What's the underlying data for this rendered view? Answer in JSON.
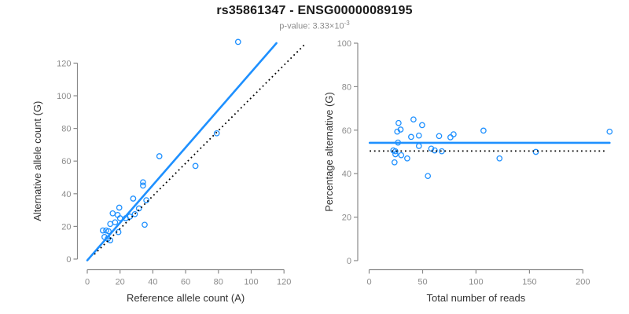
{
  "header": {
    "title": "rs35861347 - ENSG00000089195",
    "pvalue_prefix": "p-value: 3.33×10",
    "pvalue_exponent": "-3"
  },
  "colors": {
    "accent_blue": "#1E90FF",
    "dotted_black": "#000000",
    "axis_gray": "#8a8a8a",
    "tick_label_gray": "#8c8c8c",
    "axis_title_dark": "#333333"
  },
  "chart_data": [
    {
      "id": "allele-count-scatter",
      "type": "scatter",
      "xlabel": "Reference allele count (A)",
      "ylabel": "Alternative allele count (G)",
      "x_ticks": [
        0,
        20,
        40,
        60,
        80,
        100,
        120
      ],
      "y_ticks": [
        0,
        20,
        40,
        60,
        80,
        100,
        120
      ],
      "xlim": [
        0,
        135
      ],
      "ylim": [
        0,
        135
      ],
      "grid": false,
      "points": [
        [
          92,
          133
        ],
        [
          79,
          77
        ],
        [
          44,
          63
        ],
        [
          66,
          57
        ],
        [
          34,
          47
        ],
        [
          34,
          45
        ],
        [
          28,
          37
        ],
        [
          36,
          36
        ],
        [
          31.5,
          31
        ],
        [
          29,
          27.5
        ],
        [
          26,
          26
        ],
        [
          19.5,
          31.5
        ],
        [
          15.5,
          28
        ],
        [
          18.5,
          27
        ],
        [
          20,
          25
        ],
        [
          23.5,
          25
        ],
        [
          17,
          22.5
        ],
        [
          14,
          21.5
        ],
        [
          35,
          21
        ],
        [
          9.5,
          17.5
        ],
        [
          11.5,
          17.5
        ],
        [
          13,
          17
        ],
        [
          19,
          16.5
        ],
        [
          10.5,
          13.5
        ],
        [
          12.5,
          12.5
        ],
        [
          14,
          11.5
        ]
      ],
      "fit_line": {
        "x1": 0,
        "y1": -0.8,
        "x2": 115.4,
        "y2": 132.2,
        "style": "solid"
      },
      "reference_line": {
        "x1": 4.3,
        "y1": 2.9,
        "x2": 132.9,
        "y2": 131.7,
        "style": "dotted"
      }
    },
    {
      "id": "percentage-alternative-scatter",
      "type": "scatter",
      "xlabel": "Total number of reads",
      "ylabel": "Percentage alternative (G)",
      "x_ticks": [
        0,
        50,
        100,
        150,
        200
      ],
      "y_ticks": [
        0,
        20,
        40,
        60,
        80,
        100
      ],
      "xlim": [
        0,
        230
      ],
      "ylim": [
        0,
        100
      ],
      "grid": false,
      "points": [
        [
          225,
          59.3
        ],
        [
          156,
          50
        ],
        [
          107,
          59.8
        ],
        [
          122,
          47
        ],
        [
          27.5,
          63.3
        ],
        [
          41.5,
          64.9
        ],
        [
          49.6,
          62.3
        ],
        [
          26.3,
          59.3
        ],
        [
          29.4,
          60.3
        ],
        [
          39.3,
          56.9
        ],
        [
          46.6,
          57.5
        ],
        [
          65.5,
          57.3
        ],
        [
          76.1,
          56.7
        ],
        [
          79,
          58.1
        ],
        [
          27,
          54.3
        ],
        [
          46.6,
          52.7
        ],
        [
          22.6,
          50.7
        ],
        [
          24.6,
          50.3
        ],
        [
          24.6,
          48.9
        ],
        [
          30,
          48.5
        ],
        [
          35.6,
          47
        ],
        [
          58.1,
          51.5
        ],
        [
          61.4,
          50.7
        ],
        [
          68,
          50.3
        ],
        [
          23.8,
          45.2
        ],
        [
          55,
          38.9
        ]
      ],
      "fit_line": {
        "y": 54.2,
        "x1": 0.5,
        "x2": 225,
        "style": "solid"
      },
      "reference_line": {
        "y": 50.4,
        "x1": 0.5,
        "x2": 222,
        "style": "dotted"
      }
    }
  ]
}
